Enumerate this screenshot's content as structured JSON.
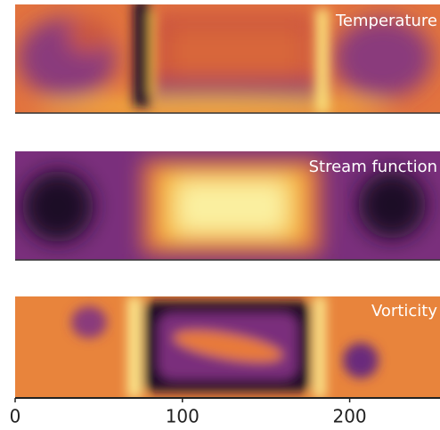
{
  "chart_data": {
    "type": "heatmap",
    "panels": [
      {
        "title": "Temperature"
      },
      {
        "title": "Stream function"
      },
      {
        "title": "Vorticity"
      }
    ],
    "xlim": [
      0,
      254
    ],
    "xticks": [
      0,
      100,
      200
    ]
  }
}
